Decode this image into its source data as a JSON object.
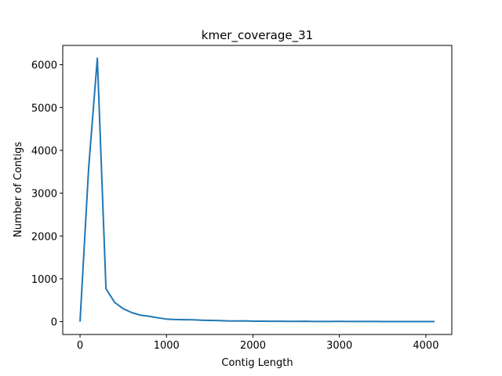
{
  "chart_data": {
    "type": "line",
    "title": "kmer_coverage_31",
    "xlabel": "Contig Length",
    "ylabel": "Number of Contigs",
    "xlim": [
      -200,
      4300
    ],
    "ylim": [
      -300,
      6450
    ],
    "xticks": [
      0,
      1000,
      2000,
      3000,
      4000
    ],
    "yticks": [
      0,
      1000,
      2000,
      3000,
      4000,
      5000,
      6000
    ],
    "grid": false,
    "series": [
      {
        "color": "#1f77b4",
        "x": [
          0,
          100,
          200,
          300,
          400,
          500,
          600,
          700,
          800,
          900,
          1000,
          1100,
          1200,
          1300,
          1400,
          1500,
          1600,
          1700,
          1800,
          1900,
          2000,
          2100,
          2200,
          2300,
          2400,
          2500,
          2600,
          2700,
          2800,
          2900,
          3000,
          3100,
          3200,
          3300,
          3400,
          3500,
          3600,
          3700,
          3800,
          3900,
          4000,
          4100
        ],
        "y": [
          0,
          3600,
          6150,
          770,
          450,
          300,
          210,
          150,
          125,
          90,
          60,
          50,
          45,
          42,
          35,
          30,
          25,
          18,
          16,
          18,
          12,
          10,
          9,
          8,
          7,
          6,
          8,
          5,
          5,
          5,
          6,
          4,
          4,
          4,
          4,
          3,
          3,
          3,
          3,
          3,
          3,
          3
        ]
      }
    ]
  }
}
